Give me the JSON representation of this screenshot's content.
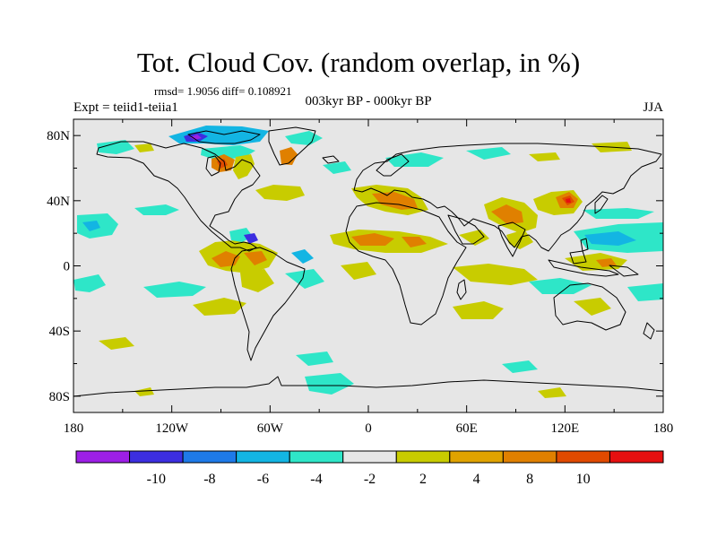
{
  "header": {
    "title": "Tot. Cloud Cov. (random overlap, in %)",
    "stats": "rmsd= 1.9056 diff= 0.108921",
    "experiment": "Expt = teiid1-teiia1",
    "period": "003kyr BP - 000kyr BP",
    "season": "JJA"
  },
  "map": {
    "projection": "cylindrical-equidistant",
    "lon_range": [
      -180,
      180
    ],
    "lat_range": [
      -90,
      90
    ],
    "background_color": "#e6e6e6",
    "lon_ticks": [
      {
        "lon": -180,
        "label": "180"
      },
      {
        "lon": -120,
        "label": "120W"
      },
      {
        "lon": -60,
        "label": "60W"
      },
      {
        "lon": 0,
        "label": "0"
      },
      {
        "lon": 60,
        "label": "60E"
      },
      {
        "lon": 120,
        "label": "120E"
      },
      {
        "lon": 180,
        "label": "180"
      }
    ],
    "lat_ticks": [
      {
        "lat": 80,
        "label": "80N"
      },
      {
        "lat": 40,
        "label": "40N"
      },
      {
        "lat": 0,
        "label": "0"
      },
      {
        "lat": -40,
        "label": "40S"
      },
      {
        "lat": -80,
        "label": "80S"
      }
    ]
  },
  "colorbar": {
    "colors": [
      "#9d1fe6",
      "#3c2ee0",
      "#1e7ae8",
      "#13b5e3",
      "#2ee6c8",
      "#e6e6e6",
      "#c8cc00",
      "#e0a300",
      "#e08000",
      "#e04a00",
      "#e61010"
    ],
    "labels": [
      "-10",
      "-8",
      "-6",
      "-4",
      "-2",
      "2",
      "4",
      "8",
      "10"
    ]
  }
}
